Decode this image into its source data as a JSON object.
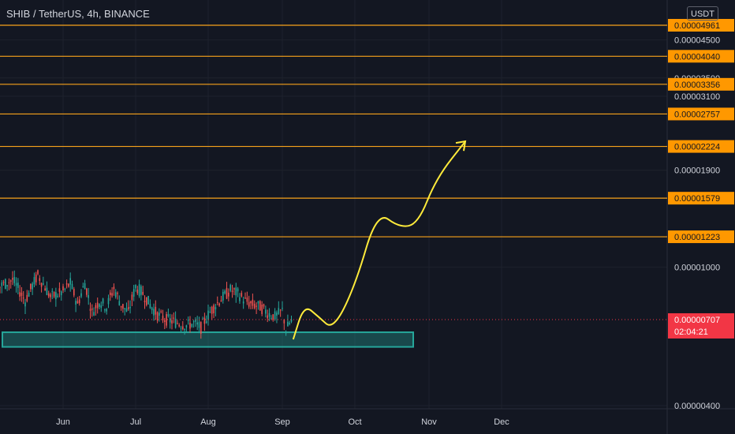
{
  "header": {
    "symbol_title": "SHIB / TetherUS, 4h, BINANCE",
    "currency_button": "USDT"
  },
  "colors": {
    "background": "#131722",
    "grid": "#1e222d",
    "up_candle": "#26a69a",
    "down_candle": "#ef5350",
    "level_line": "#f7a21b",
    "level_label_bg": "#ff9800",
    "level_label_text": "#131722",
    "scale_text": "#d1d4dc",
    "current_price_bg": "#f23645",
    "current_price_line": "#f23645",
    "support_zone": "#26a69a",
    "projection": "#ffeb3b"
  },
  "chart_data": {
    "type": "candlestick",
    "title": "SHIB / TetherUS, 4h, BINANCE",
    "y_axis_unit": "USDT",
    "x_ticks": [
      "Jun",
      "Jul",
      "Aug",
      "Sep",
      "Oct",
      "Nov",
      "Dec"
    ],
    "y_ticks": [
      4.5e-05,
      3.5e-05,
      3.1e-05,
      1.9e-05,
      1e-05,
      4e-06
    ],
    "y_tick_labels": [
      "0.00004500",
      "0.00003500",
      "0.00003100",
      "0.00001900",
      "0.00001000",
      "0.00000400"
    ],
    "ylim": [
      3.3e-06,
      5.1e-05
    ],
    "price_levels": [
      {
        "value": 4.961e-05,
        "label": "0.00004961"
      },
      {
        "value": 4.04e-05,
        "label": "0.00004040"
      },
      {
        "value": 3.356e-05,
        "label": "0.00003356"
      },
      {
        "value": 2.757e-05,
        "label": "0.00002757"
      },
      {
        "value": 2.224e-05,
        "label": "0.00002224"
      },
      {
        "value": 1.579e-05,
        "label": "0.00001579"
      },
      {
        "value": 1.223e-05,
        "label": "0.00001223"
      }
    ],
    "current_price": {
      "value": 7.07e-06,
      "label": "0.00000707",
      "countdown": "02:04:21"
    },
    "support_zone": {
      "low": 5.9e-06,
      "high": 6.5e-06
    },
    "price_series": {
      "description_free": true,
      "month_start_index": {
        "May": 0,
        "Jun": 1,
        "Jul": 2,
        "Aug": 3,
        "Sep": 4,
        "Oct": 5,
        "Nov": 6,
        "Dec": 7
      },
      "points": [
        [
          0.02,
          1.5e-05
        ],
        [
          0.035,
          5e-05
        ],
        [
          0.045,
          4.2e-05
        ],
        [
          0.06,
          3e-05
        ],
        [
          0.08,
          2e-05
        ],
        [
          0.12,
          1.6e-05
        ],
        [
          0.16,
          1.7e-05
        ],
        [
          0.22,
          1.25e-05
        ],
        [
          0.3,
          1e-05
        ],
        [
          0.4,
          9.2e-06
        ],
        [
          0.5,
          8.8e-06
        ],
        [
          0.6,
          9.2e-06
        ],
        [
          0.7,
          8e-06
        ],
        [
          0.8,
          9.5e-06
        ],
        [
          0.9,
          8.2e-06
        ],
        [
          1.0,
          8.5e-06
        ],
        [
          1.1,
          9e-06
        ],
        [
          1.2,
          7.8e-06
        ],
        [
          1.3,
          9e-06
        ],
        [
          1.4,
          7.4e-06
        ],
        [
          1.5,
          8e-06
        ],
        [
          1.6,
          7.7e-06
        ],
        [
          1.7,
          8.7e-06
        ],
        [
          1.8,
          7.8e-06
        ],
        [
          1.9,
          7.4e-06
        ],
        [
          2.0,
          8.8e-06
        ],
        [
          2.1,
          8.4e-06
        ],
        [
          2.2,
          7.8e-06
        ],
        [
          2.3,
          7.3e-06
        ],
        [
          2.4,
          7.1e-06
        ],
        [
          2.5,
          7e-06
        ],
        [
          2.6,
          6.9e-06
        ],
        [
          2.7,
          6.8e-06
        ],
        [
          2.8,
          6.9e-06
        ],
        [
          2.9,
          6.7e-06
        ],
        [
          3.0,
          7.3e-06
        ],
        [
          3.1,
          7.8e-06
        ],
        [
          3.2,
          8.2e-06
        ],
        [
          3.3,
          8.6e-06
        ],
        [
          3.4,
          8.4e-06
        ],
        [
          3.5,
          8e-06
        ],
        [
          3.6,
          7.8e-06
        ],
        [
          3.7,
          7.7e-06
        ],
        [
          3.8,
          7.4e-06
        ],
        [
          3.9,
          7.2e-06
        ],
        [
          4.0,
          7.5e-06
        ],
        [
          4.05,
          6.6e-06
        ],
        [
          4.1,
          6.9e-06
        ],
        [
          4.15,
          7.07e-06
        ]
      ]
    },
    "projection_path": [
      [
        4.15,
        6.2e-06
      ],
      [
        4.3,
        7.8e-06
      ],
      [
        4.5,
        7.2e-06
      ],
      [
        4.7,
        6.6e-06
      ],
      [
        5.0,
        8.8e-06
      ],
      [
        5.3,
        1.45e-05
      ],
      [
        5.6,
        1.3e-05
      ],
      [
        5.85,
        1.33e-05
      ],
      [
        6.1,
        1.8e-05
      ],
      [
        6.5,
        2.3e-05
      ]
    ],
    "grid": true
  }
}
